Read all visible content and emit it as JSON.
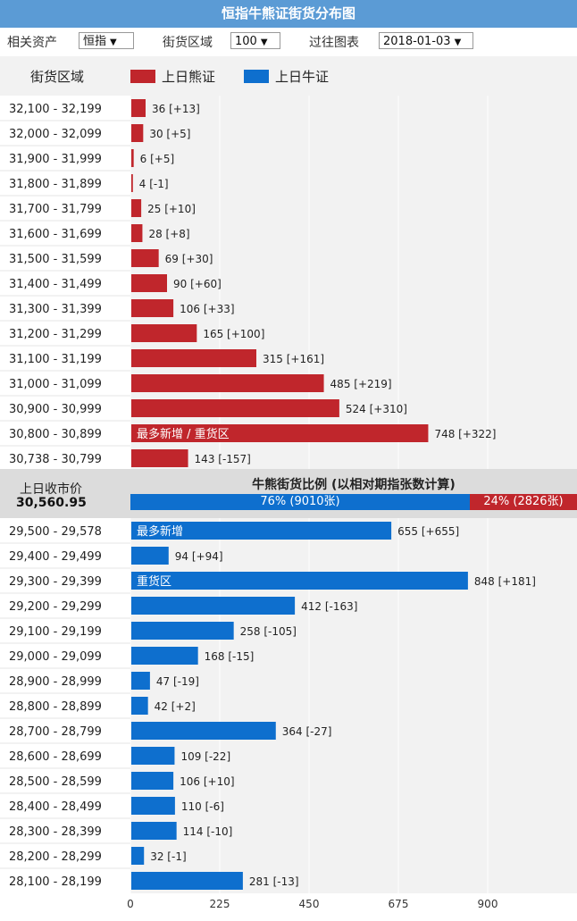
{
  "title": "恒指牛熊证街货分布图",
  "controls": {
    "asset_label": "相关资产",
    "asset_value": "恒指",
    "range_label": "街货区域",
    "range_value": "100",
    "history_label": "过往图表",
    "history_value": "2018-01-03"
  },
  "legend": {
    "column_header": "街货区域",
    "bear_label": "上日熊证",
    "bull_label": "上日牛证"
  },
  "summary": {
    "prev_close_label": "上日收市价",
    "prev_close_value": "30,560.95",
    "ratio_title": "牛熊街货比例 (以相对期指张数计算)",
    "bull_ratio_text": "76% (9010张)",
    "bear_ratio_text": "24% (2826张)",
    "bull_ratio": 0.76,
    "bear_ratio": 0.24
  },
  "colors": {
    "bear": "#c0262c",
    "bull": "#0e6fce",
    "title_bar": "#5b9bd5"
  },
  "chart_data": {
    "type": "bar",
    "orientation": "horizontal",
    "xlim": [
      0,
      1125
    ],
    "x_ticks": [
      0,
      225,
      450,
      675,
      900
    ],
    "series": [
      {
        "name": "上日熊证",
        "color": "#c0262c",
        "rows": [
          {
            "range": "32,100 - 32,199",
            "value": 36,
            "change": "[+13]",
            "tag": ""
          },
          {
            "range": "32,000 - 32,099",
            "value": 30,
            "change": "[+5]",
            "tag": ""
          },
          {
            "range": "31,900 - 31,999",
            "value": 6,
            "change": "[+5]",
            "tag": ""
          },
          {
            "range": "31,800 - 31,899",
            "value": 4,
            "change": "[-1]",
            "tag": ""
          },
          {
            "range": "31,700 - 31,799",
            "value": 25,
            "change": "[+10]",
            "tag": ""
          },
          {
            "range": "31,600 - 31,699",
            "value": 28,
            "change": "[+8]",
            "tag": ""
          },
          {
            "range": "31,500 - 31,599",
            "value": 69,
            "change": "[+30]",
            "tag": ""
          },
          {
            "range": "31,400 - 31,499",
            "value": 90,
            "change": "[+60]",
            "tag": ""
          },
          {
            "range": "31,300 - 31,399",
            "value": 106,
            "change": "[+33]",
            "tag": ""
          },
          {
            "range": "31,200 - 31,299",
            "value": 165,
            "change": "[+100]",
            "tag": ""
          },
          {
            "range": "31,100 - 31,199",
            "value": 315,
            "change": "[+161]",
            "tag": ""
          },
          {
            "range": "31,000 - 31,099",
            "value": 485,
            "change": "[+219]",
            "tag": ""
          },
          {
            "range": "30,900 - 30,999",
            "value": 524,
            "change": "[+310]",
            "tag": ""
          },
          {
            "range": "30,800 - 30,899",
            "value": 748,
            "change": "[+322]",
            "tag": "最多新增 / 重货区"
          },
          {
            "range": "30,738 - 30,799",
            "value": 143,
            "change": "[-157]",
            "tag": ""
          }
        ]
      },
      {
        "name": "上日牛证",
        "color": "#0e6fce",
        "rows": [
          {
            "range": "29,500 - 29,578",
            "value": 655,
            "change": "[+655]",
            "tag": "最多新增"
          },
          {
            "range": "29,400 - 29,499",
            "value": 94,
            "change": "[+94]",
            "tag": ""
          },
          {
            "range": "29,300 - 29,399",
            "value": 848,
            "change": "[+181]",
            "tag": "重货区"
          },
          {
            "range": "29,200 - 29,299",
            "value": 412,
            "change": "[-163]",
            "tag": ""
          },
          {
            "range": "29,100 - 29,199",
            "value": 258,
            "change": "[-105]",
            "tag": ""
          },
          {
            "range": "29,000 - 29,099",
            "value": 168,
            "change": "[-15]",
            "tag": ""
          },
          {
            "range": "28,900 - 28,999",
            "value": 47,
            "change": "[-19]",
            "tag": ""
          },
          {
            "range": "28,800 - 28,899",
            "value": 42,
            "change": "[+2]",
            "tag": ""
          },
          {
            "range": "28,700 - 28,799",
            "value": 364,
            "change": "[-27]",
            "tag": ""
          },
          {
            "range": "28,600 - 28,699",
            "value": 109,
            "change": "[-22]",
            "tag": ""
          },
          {
            "range": "28,500 - 28,599",
            "value": 106,
            "change": "[+10]",
            "tag": ""
          },
          {
            "range": "28,400 - 28,499",
            "value": 110,
            "change": "[-6]",
            "tag": ""
          },
          {
            "range": "28,300 - 28,399",
            "value": 114,
            "change": "[-10]",
            "tag": ""
          },
          {
            "range": "28,200 - 28,299",
            "value": 32,
            "change": "[-1]",
            "tag": ""
          },
          {
            "range": "28,100 - 28,199",
            "value": 281,
            "change": "[-13]",
            "tag": ""
          }
        ]
      }
    ]
  }
}
